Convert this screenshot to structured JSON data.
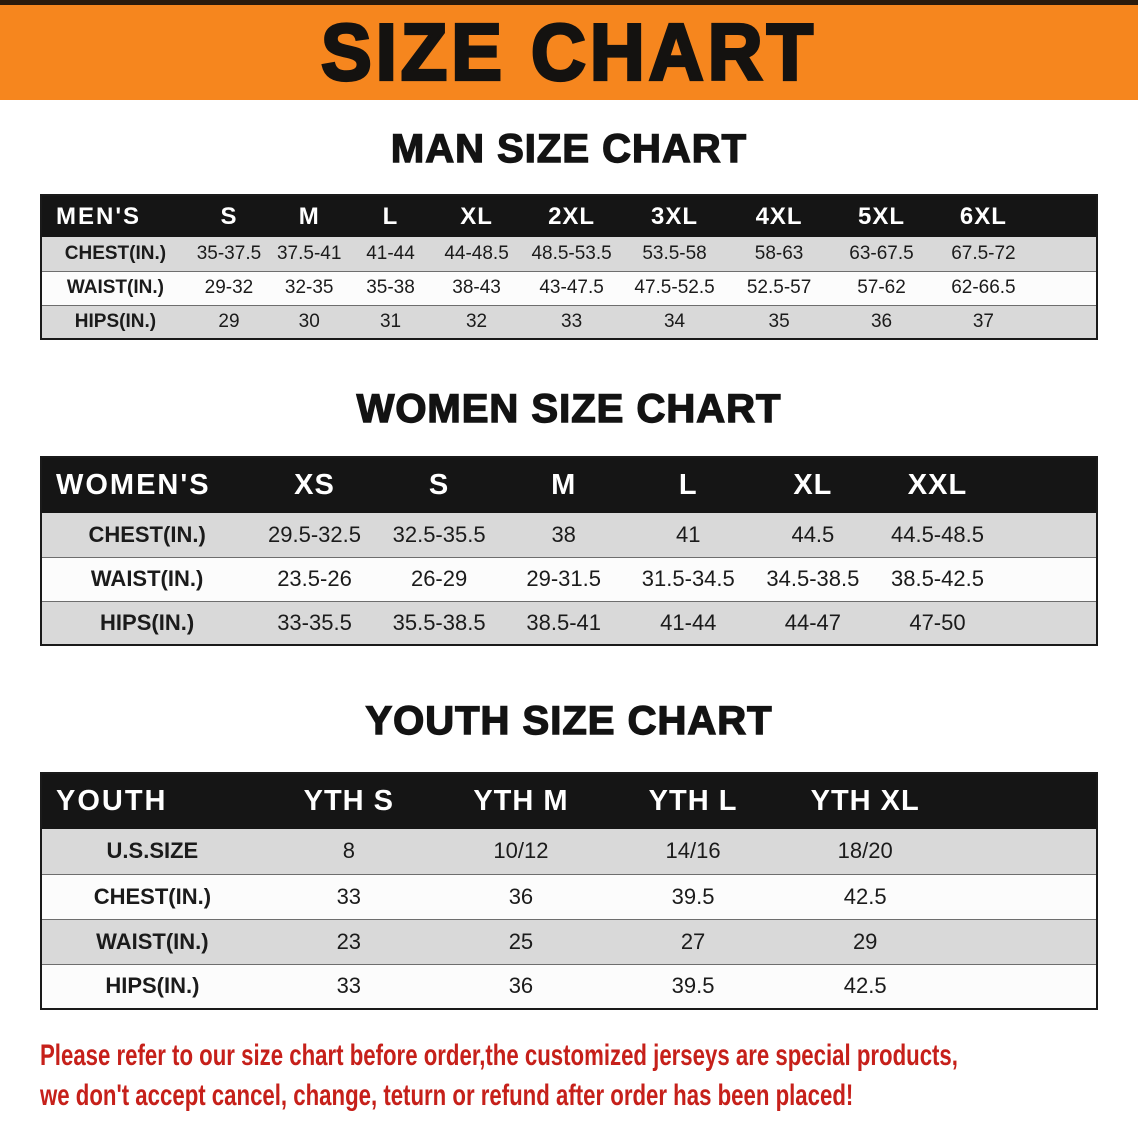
{
  "banner": {
    "title": "SIZE CHART"
  },
  "sections": [
    {
      "id": "men",
      "heading": "MAN SIZE CHART",
      "table": {
        "header": [
          "MEN'S",
          "S",
          "M",
          "L",
          "XL",
          "2XL",
          "3XL",
          "4XL",
          "5XL",
          "6XL"
        ],
        "rows": [
          {
            "label": "CHEST(IN.)",
            "values": [
              "35-37.5",
              "37.5-41",
              "41-44",
              "44-48.5",
              "48.5-53.5",
              "53.5-58",
              "58-63",
              "63-67.5",
              "67.5-72"
            ]
          },
          {
            "label": "WAIST(IN.)",
            "values": [
              "29-32",
              "32-35",
              "35-38",
              "38-43",
              "43-47.5",
              "47.5-52.5",
              "52.5-57",
              "57-62",
              "62-66.5"
            ]
          },
          {
            "label": "HIPS(IN.)",
            "values": [
              "29",
              "30",
              "31",
              "32",
              "33",
              "34",
              "35",
              "36",
              "37"
            ]
          }
        ]
      }
    },
    {
      "id": "women",
      "heading": "WOMEN SIZE CHART",
      "table": {
        "header": [
          "WOMEN'S",
          "XS",
          "S",
          "M",
          "L",
          "XL",
          "XXL"
        ],
        "rows": [
          {
            "label": "CHEST(IN.)",
            "values": [
              "29.5-32.5",
              "32.5-35.5",
              "38",
              "41",
              "44.5",
              "44.5-48.5"
            ]
          },
          {
            "label": "WAIST(IN.)",
            "values": [
              "23.5-26",
              "26-29",
              "29-31.5",
              "31.5-34.5",
              "34.5-38.5",
              "38.5-42.5"
            ]
          },
          {
            "label": "HIPS(IN.)",
            "values": [
              "33-35.5",
              "35.5-38.5",
              "38.5-41",
              "41-44",
              "44-47",
              "47-50"
            ]
          }
        ]
      }
    },
    {
      "id": "youth",
      "heading": "YOUTH SIZE CHART",
      "table": {
        "header": [
          "YOUTH",
          "YTH S",
          "YTH M",
          "YTH L",
          "YTH XL"
        ],
        "rows": [
          {
            "label": "U.S.SIZE",
            "values": [
              "8",
              "10/12",
              "14/16",
              "18/20"
            ]
          },
          {
            "label": "CHEST(IN.)",
            "values": [
              "33",
              "36",
              "39.5",
              "42.5"
            ]
          },
          {
            "label": "WAIST(IN.)",
            "values": [
              "23",
              "25",
              "27",
              "29"
            ]
          },
          {
            "label": "HIPS(IN.)",
            "values": [
              "33",
              "36",
              "39.5",
              "42.5"
            ]
          }
        ]
      }
    }
  ],
  "footer": {
    "lines": [
      "Please refer to our size chart before order,the customized jerseys are special products,",
      "we don't accept cancel, change, teturn or refund after order has been placed!"
    ]
  },
  "colors": {
    "banner_orange": "#f6861e",
    "title_black": "#141210",
    "table_header_black": "#151515",
    "row_gray": "#d9d9d9",
    "row_white": "#fcfcfc",
    "notice_red": "#c6201a"
  }
}
